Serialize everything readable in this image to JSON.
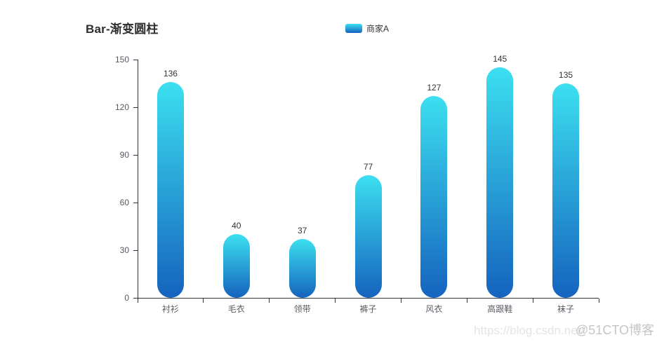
{
  "chart_data": {
    "type": "bar",
    "title": "Bar-渐变圆柱",
    "categories": [
      "衬衫",
      "毛衣",
      "领带",
      "裤子",
      "风衣",
      "高跟鞋",
      "袜子"
    ],
    "series": [
      {
        "name": "商家A",
        "values": [
          136,
          40,
          37,
          77,
          127,
          145,
          135
        ]
      }
    ],
    "value_labels_shown": true,
    "xlabel": "",
    "ylabel": "",
    "ylim": [
      0,
      150
    ],
    "yticks": [
      "0",
      "30",
      "60",
      "90",
      "120",
      "150"
    ],
    "grid": false,
    "legend_position": "top-center",
    "bar_shape": "rounded-pill",
    "colors": {
      "bar_gradient_top": "#3CDFF0",
      "bar_gradient_bottom": "#1563BE",
      "axis": "#333333",
      "axis_label": "#555a61",
      "value_label": "#333333",
      "title": "#2e2e2e"
    }
  },
  "watermark": {
    "url_text": "https://blog.csdn.net/",
    "badge_text": "@51CTO博客"
  }
}
